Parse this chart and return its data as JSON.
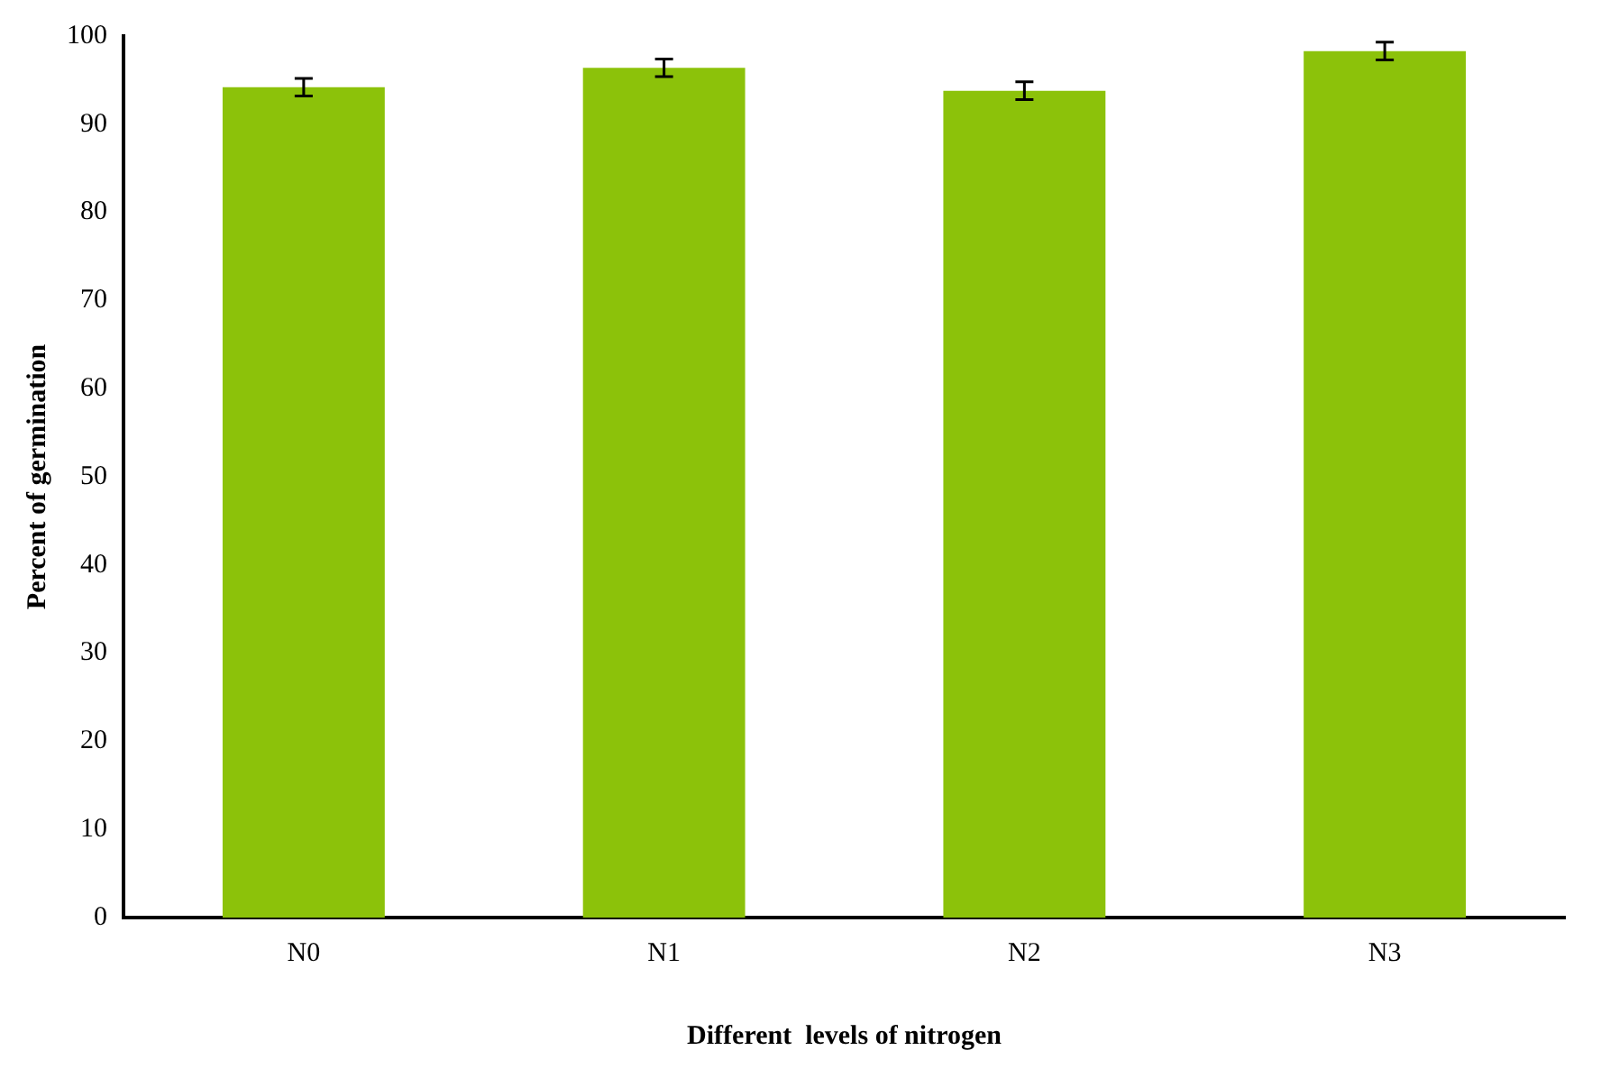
{
  "chart_data": {
    "type": "bar",
    "xlabel": "Different  levels of nitrogen",
    "ylabel": "Percent of germination",
    "categories": [
      "N0",
      "N1",
      "N2",
      "N3"
    ],
    "values": [
      94.2,
      96.4,
      93.8,
      98.3
    ],
    "errors": [
      1,
      1,
      1,
      1
    ],
    "color": "#8cc20a",
    "ylim": [
      0,
      100
    ],
    "yticks": [
      0,
      10,
      20,
      30,
      40,
      50,
      60,
      70,
      80,
      90,
      100
    ],
    "grid": false,
    "legend": false
  }
}
